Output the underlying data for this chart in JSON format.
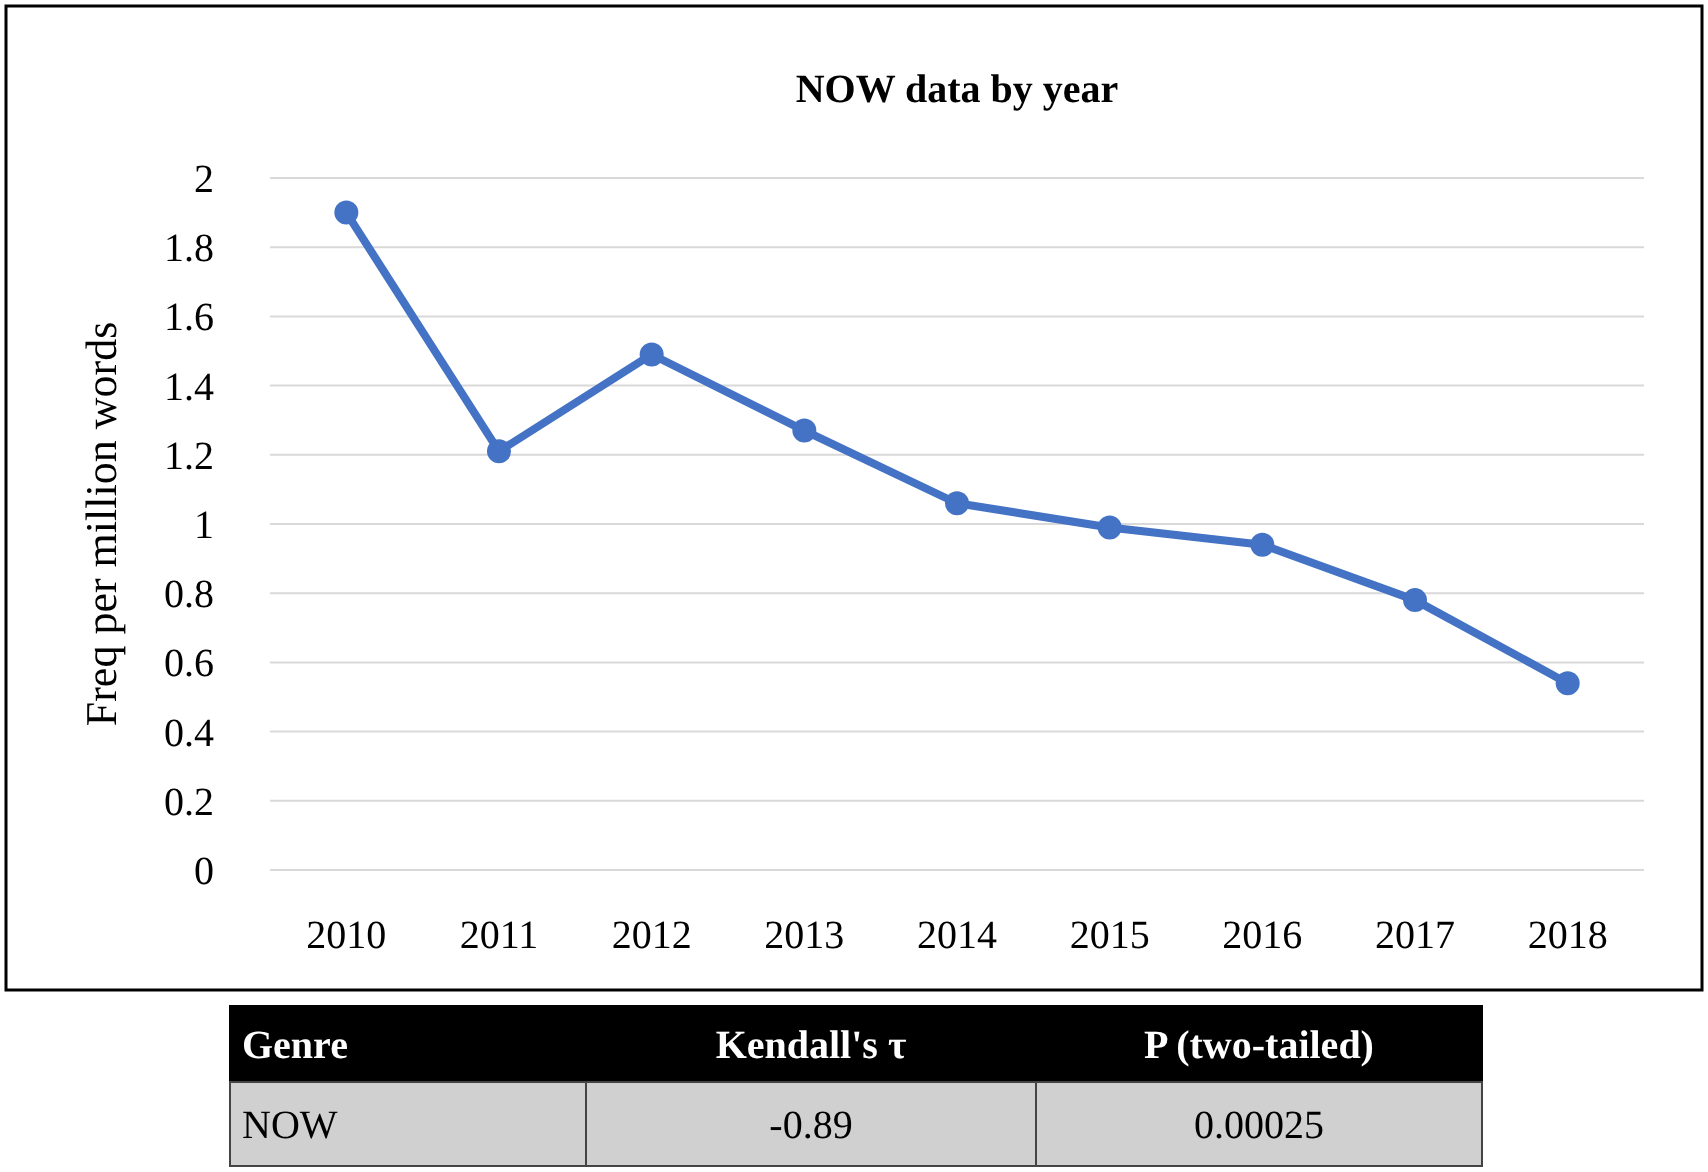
{
  "chart_data": {
    "type": "line",
    "title": "NOW data by year",
    "ylabel": "Freq per million words",
    "categories": [
      "2010",
      "2011",
      "2012",
      "2013",
      "2014",
      "2015",
      "2016",
      "2017",
      "2018"
    ],
    "series": [
      {
        "color": "#4472c4",
        "values": [
          1.9,
          1.21,
          1.49,
          1.27,
          1.06,
          0.99,
          0.94,
          0.78,
          0.54
        ]
      }
    ],
    "ylim": [
      0,
      2
    ],
    "yticks": [
      0,
      0.2,
      0.4,
      0.6,
      0.8,
      1,
      1.2,
      1.4,
      1.6,
      1.8,
      2
    ],
    "grid": "y",
    "marker": "circle",
    "line_style": "solid",
    "annotations": [
      "Genre",
      "Kendall's τ",
      "P (two-tailed)",
      "NOW",
      "-0.89",
      "0.00025"
    ]
  }
}
